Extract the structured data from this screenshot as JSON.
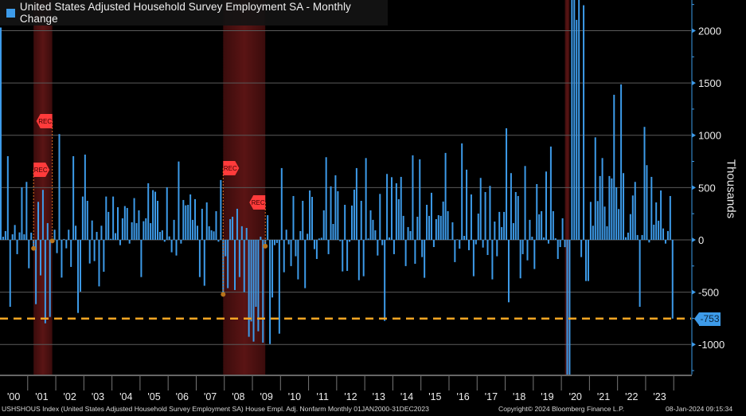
{
  "title": "United States Adjusted Household Survey Employment SA - Monthly Change",
  "footer": {
    "description": "USHSHOUS Index (United States Adjusted Household Survey Employment SA) House Empl. Adj. Nonfarm  Monthly 01JAN2000-31DEC2023",
    "copyright": "Copyright© 2024 Bloomberg Finance L.P.",
    "timestamp": "08-Jan-2024 09:15:34"
  },
  "colors": {
    "bars": "#3d9be9",
    "recession": "#5a1414",
    "last_value_line": "#f5a623",
    "rec_marker": "#ff3b3b",
    "background": "#000000",
    "grid": "#555555"
  },
  "chart_data": {
    "type": "bar",
    "title": "United States Adjusted Household Survey Employment SA - Monthly Change",
    "ylabel": "Thousands",
    "xlabel": "",
    "frequency": "Monthly",
    "period": {
      "start": "2000-01",
      "end": "2023-12"
    },
    "ylim": [
      -1288,
      2293
    ],
    "y_ticks": [
      2000,
      1500,
      1000,
      500,
      0,
      -500,
      -1000
    ],
    "y_tick_labels": [
      "2000",
      "1500",
      "1000",
      "500",
      "0",
      "-500",
      "-1000"
    ],
    "x_tick_labels": [
      "'00",
      "'01",
      "'02",
      "'03",
      "'04",
      "'05",
      "'06",
      "'07",
      "'08",
      "'09",
      "'10",
      "'11",
      "'12",
      "'13",
      "'14",
      "'15",
      "'16",
      "'17",
      "'18",
      "'19",
      "'20",
      "'21",
      "'22",
      "'23"
    ],
    "grid": true,
    "y_axis_side": "right",
    "last_value": -753,
    "last_value_label": "-753",
    "recession_label": "REC",
    "recessions": [
      {
        "start": "2001-03",
        "end": "2001-11"
      },
      {
        "start": "2007-12",
        "end": "2009-06"
      },
      {
        "start": "2020-02",
        "end": "2020-04"
      }
    ],
    "values": [
      2030,
      30,
      84,
      800,
      -640,
      53,
      142,
      -137,
      71,
      503,
      53,
      554,
      -272,
      69,
      -81,
      -615,
      363,
      -340,
      478,
      -798,
      160,
      -737,
      -10,
      97,
      -127,
      1011,
      -361,
      8,
      -81,
      97,
      -259,
      800,
      135,
      -699,
      -495,
      414,
      815,
      373,
      -226,
      185,
      -203,
      76,
      -445,
      135,
      -305,
      414,
      267,
      10,
      414,
      64,
      312,
      -51,
      206,
      323,
      305,
      -36,
      168,
      399,
      160,
      282,
      -356,
      178,
      206,
      541,
      160,
      475,
      460,
      373,
      76,
      91,
      -18,
      503,
      33,
      -119,
      191,
      -150,
      749,
      -36,
      381,
      330,
      335,
      434,
      191,
      389,
      135,
      -356,
      297,
      -439,
      358,
      130,
      91,
      81,
      274,
      -18,
      572,
      -521,
      -157,
      -462,
      198,
      221,
      -480,
      297,
      -356,
      130,
      -500,
      114,
      -927,
      -780,
      -973,
      -640,
      -874,
      30,
      -983,
      -60,
      236,
      -996,
      -551,
      -51,
      -30,
      -897,
      686,
      -310,
      97,
      -43,
      -251,
      419,
      -157,
      -378,
      84,
      373,
      -462,
      58,
      472,
      411,
      -89,
      -183,
      13,
      20,
      282,
      790,
      -137,
      511,
      152,
      617,
      465,
      -13,
      -302,
      335,
      -297,
      -18,
      328,
      480,
      686,
      -386,
      373,
      -348,
      782,
      13,
      282,
      191,
      91,
      -150,
      439,
      -51,
      -775,
      630,
      23,
      599,
      -137,
      541,
      389,
      602,
      229,
      -251,
      122,
      84,
      808,
      -229,
      221,
      770,
      -165,
      -363,
      335,
      229,
      450,
      -69,
      198,
      236,
      229,
      366,
      831,
      274,
      5,
      168,
      -213,
      5,
      -84,
      922,
      38,
      671,
      -99,
      434,
      -348,
      -43,
      251,
      592,
      -74,
      457,
      -145,
      516,
      -378,
      175,
      -157,
      267,
      122,
      267,
      1067,
      -597,
      638,
      160,
      457,
      419,
      -368,
      -137,
      706,
      -196,
      191,
      30,
      -279,
      533,
      244,
      274,
      23,
      653,
      -36,
      892,
      274,
      15,
      -183,
      -69,
      206,
      -70,
      -2987,
      -22369,
      3839,
      4940,
      2103,
      3756,
      -165,
      2243,
      -394,
      -394,
      363,
      135,
      980,
      371,
      610,
      782,
      318,
      130,
      610,
      587,
      1387,
      503,
      295,
      1486,
      638,
      25,
      69,
      246,
      424,
      554,
      46,
      -640,
      46,
      1080,
      714,
      -25,
      602,
      145,
      358,
      183,
      472,
      109,
      -36,
      84,
      419,
      -753
    ]
  }
}
